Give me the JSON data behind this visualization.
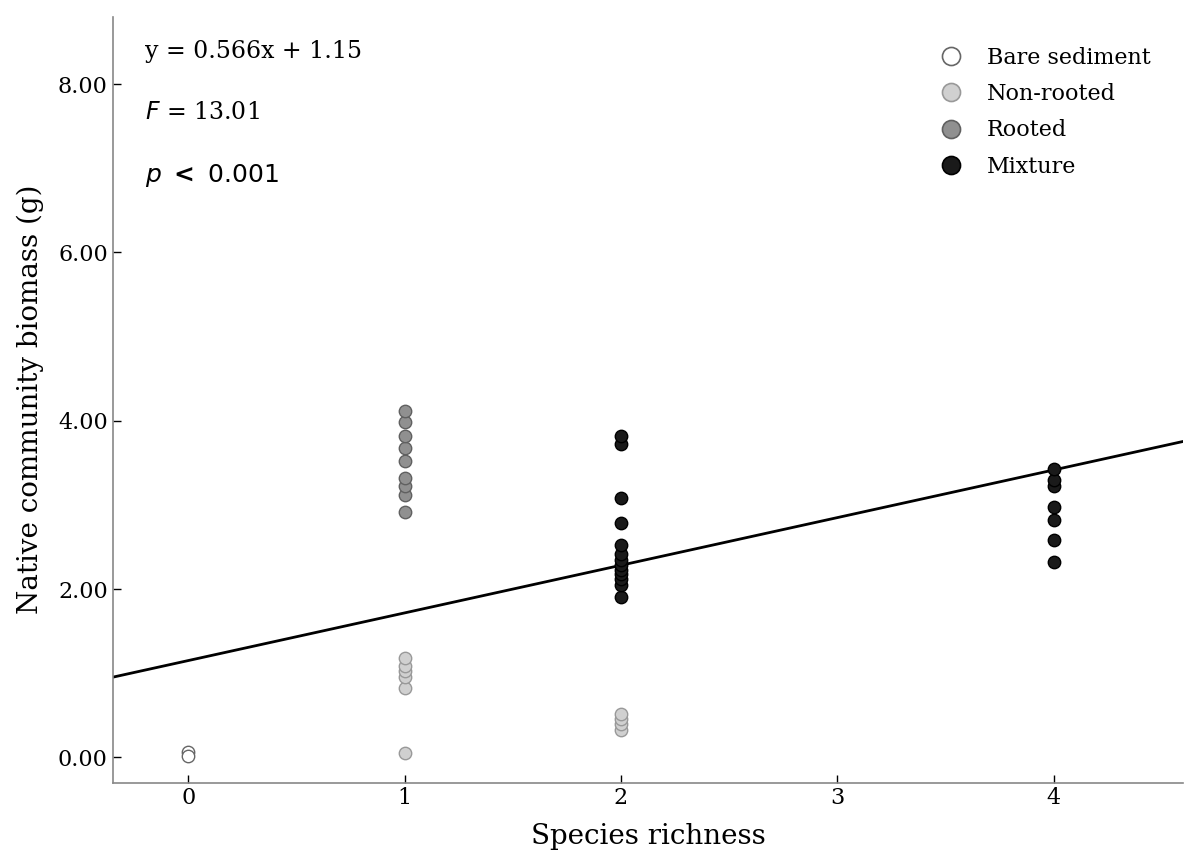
{
  "xlabel": "Species richness",
  "ylabel": "Native community biomass (g)",
  "xlim": [
    -0.35,
    4.6
  ],
  "ylim": [
    -0.3,
    8.8
  ],
  "xticks": [
    0,
    1,
    2,
    3,
    4
  ],
  "yticks": [
    0.0,
    2.0,
    4.0,
    6.0,
    8.0
  ],
  "yticklabels": [
    "0.00",
    "2.00",
    "4.00",
    "6.00",
    "8.00"
  ],
  "regression_slope": 0.566,
  "regression_intercept": 1.15,
  "equation_text": "y = 0.566x + 1.15",
  "F_text": "F = 13.01",
  "p_text": "p < 0.001",
  "groups": {
    "Bare sediment": {
      "color": "#ffffff",
      "edgecolor": "#666666",
      "x": [
        0,
        0
      ],
      "y": [
        0.06,
        0.02
      ]
    },
    "Non-rooted": {
      "color": "#d0d0d0",
      "edgecolor": "#999999",
      "x": [
        1,
        1,
        1,
        1,
        1,
        1,
        2,
        2,
        2,
        2
      ],
      "y": [
        0.05,
        0.82,
        0.95,
        1.02,
        1.08,
        1.18,
        0.33,
        0.4,
        0.46,
        0.52
      ]
    },
    "Rooted": {
      "color": "#909090",
      "edgecolor": "#606060",
      "x": [
        1,
        1,
        1,
        1,
        1,
        1,
        1,
        1,
        1
      ],
      "y": [
        2.92,
        3.12,
        3.22,
        3.32,
        3.52,
        3.68,
        3.82,
        3.98,
        4.12
      ]
    },
    "Mixture": {
      "color": "#1a1a1a",
      "edgecolor": "#000000",
      "x": [
        2,
        2,
        2,
        2,
        2,
        2,
        2,
        2,
        2,
        2,
        2,
        2,
        2,
        4,
        4,
        4,
        4,
        4,
        4,
        4
      ],
      "y": [
        1.9,
        2.05,
        2.12,
        2.18,
        2.23,
        2.28,
        2.35,
        2.42,
        2.52,
        2.78,
        3.08,
        3.72,
        3.82,
        2.32,
        2.58,
        2.82,
        2.98,
        3.22,
        3.3,
        3.42
      ]
    }
  },
  "background_color": "#ffffff",
  "plot_bg_color": "#ffffff",
  "marker_size": 80,
  "marker_linewidth": 1.0,
  "spine_color": "#888888",
  "font_size_ticks": 16,
  "font_size_labels": 20,
  "font_size_annotation": 17,
  "font_size_legend": 16
}
